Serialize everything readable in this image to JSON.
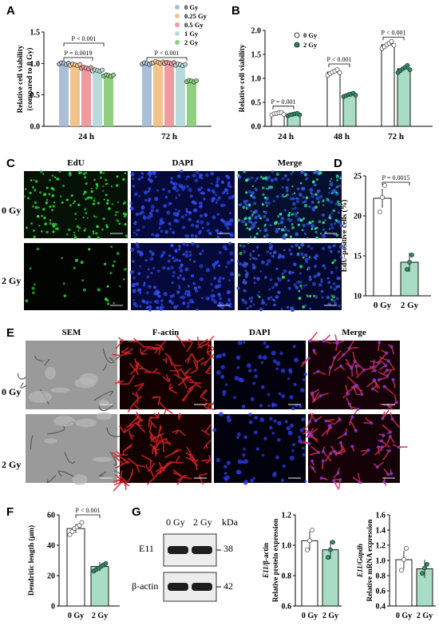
{
  "panels": {
    "A": "A",
    "B": "B",
    "C": "C",
    "D": "D",
    "E": "E",
    "F": "F",
    "G": "G"
  },
  "panelA": {
    "legend": [
      {
        "label": "0 Gy",
        "color": "#a9bfd8"
      },
      {
        "label": "0.25 Gy",
        "color": "#f1c48c"
      },
      {
        "label": "0.5 Gy",
        "color": "#ef9a9f"
      },
      {
        "label": "1 Gy",
        "color": "#b9dadb"
      },
      {
        "label": "2 Gy",
        "color": "#8fcf7f"
      }
    ],
    "pvals": [
      "P < 0.001",
      "P = 0.0019",
      "P < 0.001"
    ]
  },
  "panelB": {
    "pvals": [
      "P = 0.001",
      "P < 0.001",
      "P < 0.001"
    ]
  },
  "panelC": {
    "cols": [
      "EdU",
      "DAPI",
      "Merge"
    ],
    "rows": [
      "0 Gy",
      "2 Gy"
    ]
  },
  "panelD": {
    "pval": "P = 0.0015"
  },
  "panelE": {
    "cols": [
      "SEM",
      "F-actin",
      "DAPI",
      "Merge"
    ],
    "rows": [
      "0 Gy",
      "2 Gy"
    ]
  },
  "panelF": {
    "pval": "P < 0.001"
  },
  "panelG": {
    "lanes": [
      "0 Gy",
      "2 Gy"
    ],
    "unit": "kDa",
    "bands": [
      {
        "name": "E11",
        "kda": "38"
      },
      {
        "name": "β-actin",
        "kda": "42"
      }
    ]
  },
  "chart_data": [
    {
      "id": "A",
      "type": "bar",
      "categories": [
        "24 h",
        "72 h"
      ],
      "series": [
        {
          "name": "0 Gy",
          "values": [
            1.0,
            1.0
          ]
        },
        {
          "name": "0.25 Gy",
          "values": [
            0.98,
            1.02
          ]
        },
        {
          "name": "0.5 Gy",
          "values": [
            0.93,
            1.01
          ]
        },
        {
          "name": "1 Gy",
          "values": [
            0.89,
            0.98
          ]
        },
        {
          "name": "2 Gy",
          "values": [
            0.81,
            0.72
          ]
        }
      ],
      "ylabel": "Relative cell viability\n(compared to 0 Gy)",
      "ylim": [
        0,
        1.5
      ],
      "yticks": [
        "0.0",
        "0.5",
        "1.0",
        "1.5"
      ]
    },
    {
      "id": "B",
      "type": "bar",
      "categories": [
        "24 h",
        "48 h",
        "72 h"
      ],
      "legend": [
        "0 Gy",
        "2 Gy"
      ],
      "series": [
        {
          "name": "0 Gy",
          "values": [
            0.27,
            1.13,
            1.7
          ]
        },
        {
          "name": "2 Gy",
          "values": [
            0.25,
            0.66,
            1.2
          ]
        }
      ],
      "ylabel": "Relative cell viability",
      "ylim": [
        0,
        2.0
      ],
      "yticks": [
        "0.0",
        "0.5",
        "1.0",
        "1.5",
        "2.0"
      ]
    },
    {
      "id": "D",
      "type": "bar",
      "categories": [
        "0 Gy",
        "2 Gy"
      ],
      "values": [
        22.2,
        14.2
      ],
      "points": [
        [
          20.5,
          22.3,
          23.8
        ],
        [
          13.3,
          14.2,
          15.1
        ]
      ],
      "ylabel": "EdU-positive cells (%)",
      "ylim": [
        10,
        25
      ],
      "yticks": [
        "10",
        "15",
        "20",
        "25"
      ]
    },
    {
      "id": "F",
      "type": "bar",
      "categories": [
        "0 Gy",
        "2 Gy"
      ],
      "values": [
        51,
        26
      ],
      "ylabel": "Dendritic length (μm)",
      "ylim": [
        0,
        60
      ],
      "yticks": [
        "0",
        "20",
        "40",
        "60"
      ]
    },
    {
      "id": "G1",
      "type": "bar",
      "categories": [
        "0 Gy",
        "2 Gy"
      ],
      "values": [
        1.03,
        0.97
      ],
      "points": [
        [
          0.97,
          1.03,
          1.1
        ],
        [
          0.92,
          0.97,
          1.02
        ]
      ],
      "ylabel_italic": "E11",
      "ylabel_rest": "/β-actin",
      "ylabel2": "Relative protein expression",
      "ylim": [
        0.6,
        1.2
      ],
      "yticks": [
        "0.6",
        "0.8",
        "1.0",
        "1.2"
      ]
    },
    {
      "id": "G2",
      "type": "bar",
      "categories": [
        "0 Gy",
        "2 Gy"
      ],
      "values": [
        1.01,
        0.89
      ],
      "points": [
        [
          0.87,
          1.01,
          1.16
        ],
        [
          0.83,
          0.9,
          0.95
        ]
      ],
      "ylabel_italic": "E11",
      "ylabel_mid": "/",
      "ylabel_italic2": "Gapdh",
      "ylabel2": "Relative mRNA expression",
      "ylim": [
        0.4,
        1.6
      ],
      "yticks": [
        "0.4",
        "0.6",
        "0.8",
        "1.0",
        "1.2",
        "1.4",
        "1.6"
      ]
    }
  ]
}
